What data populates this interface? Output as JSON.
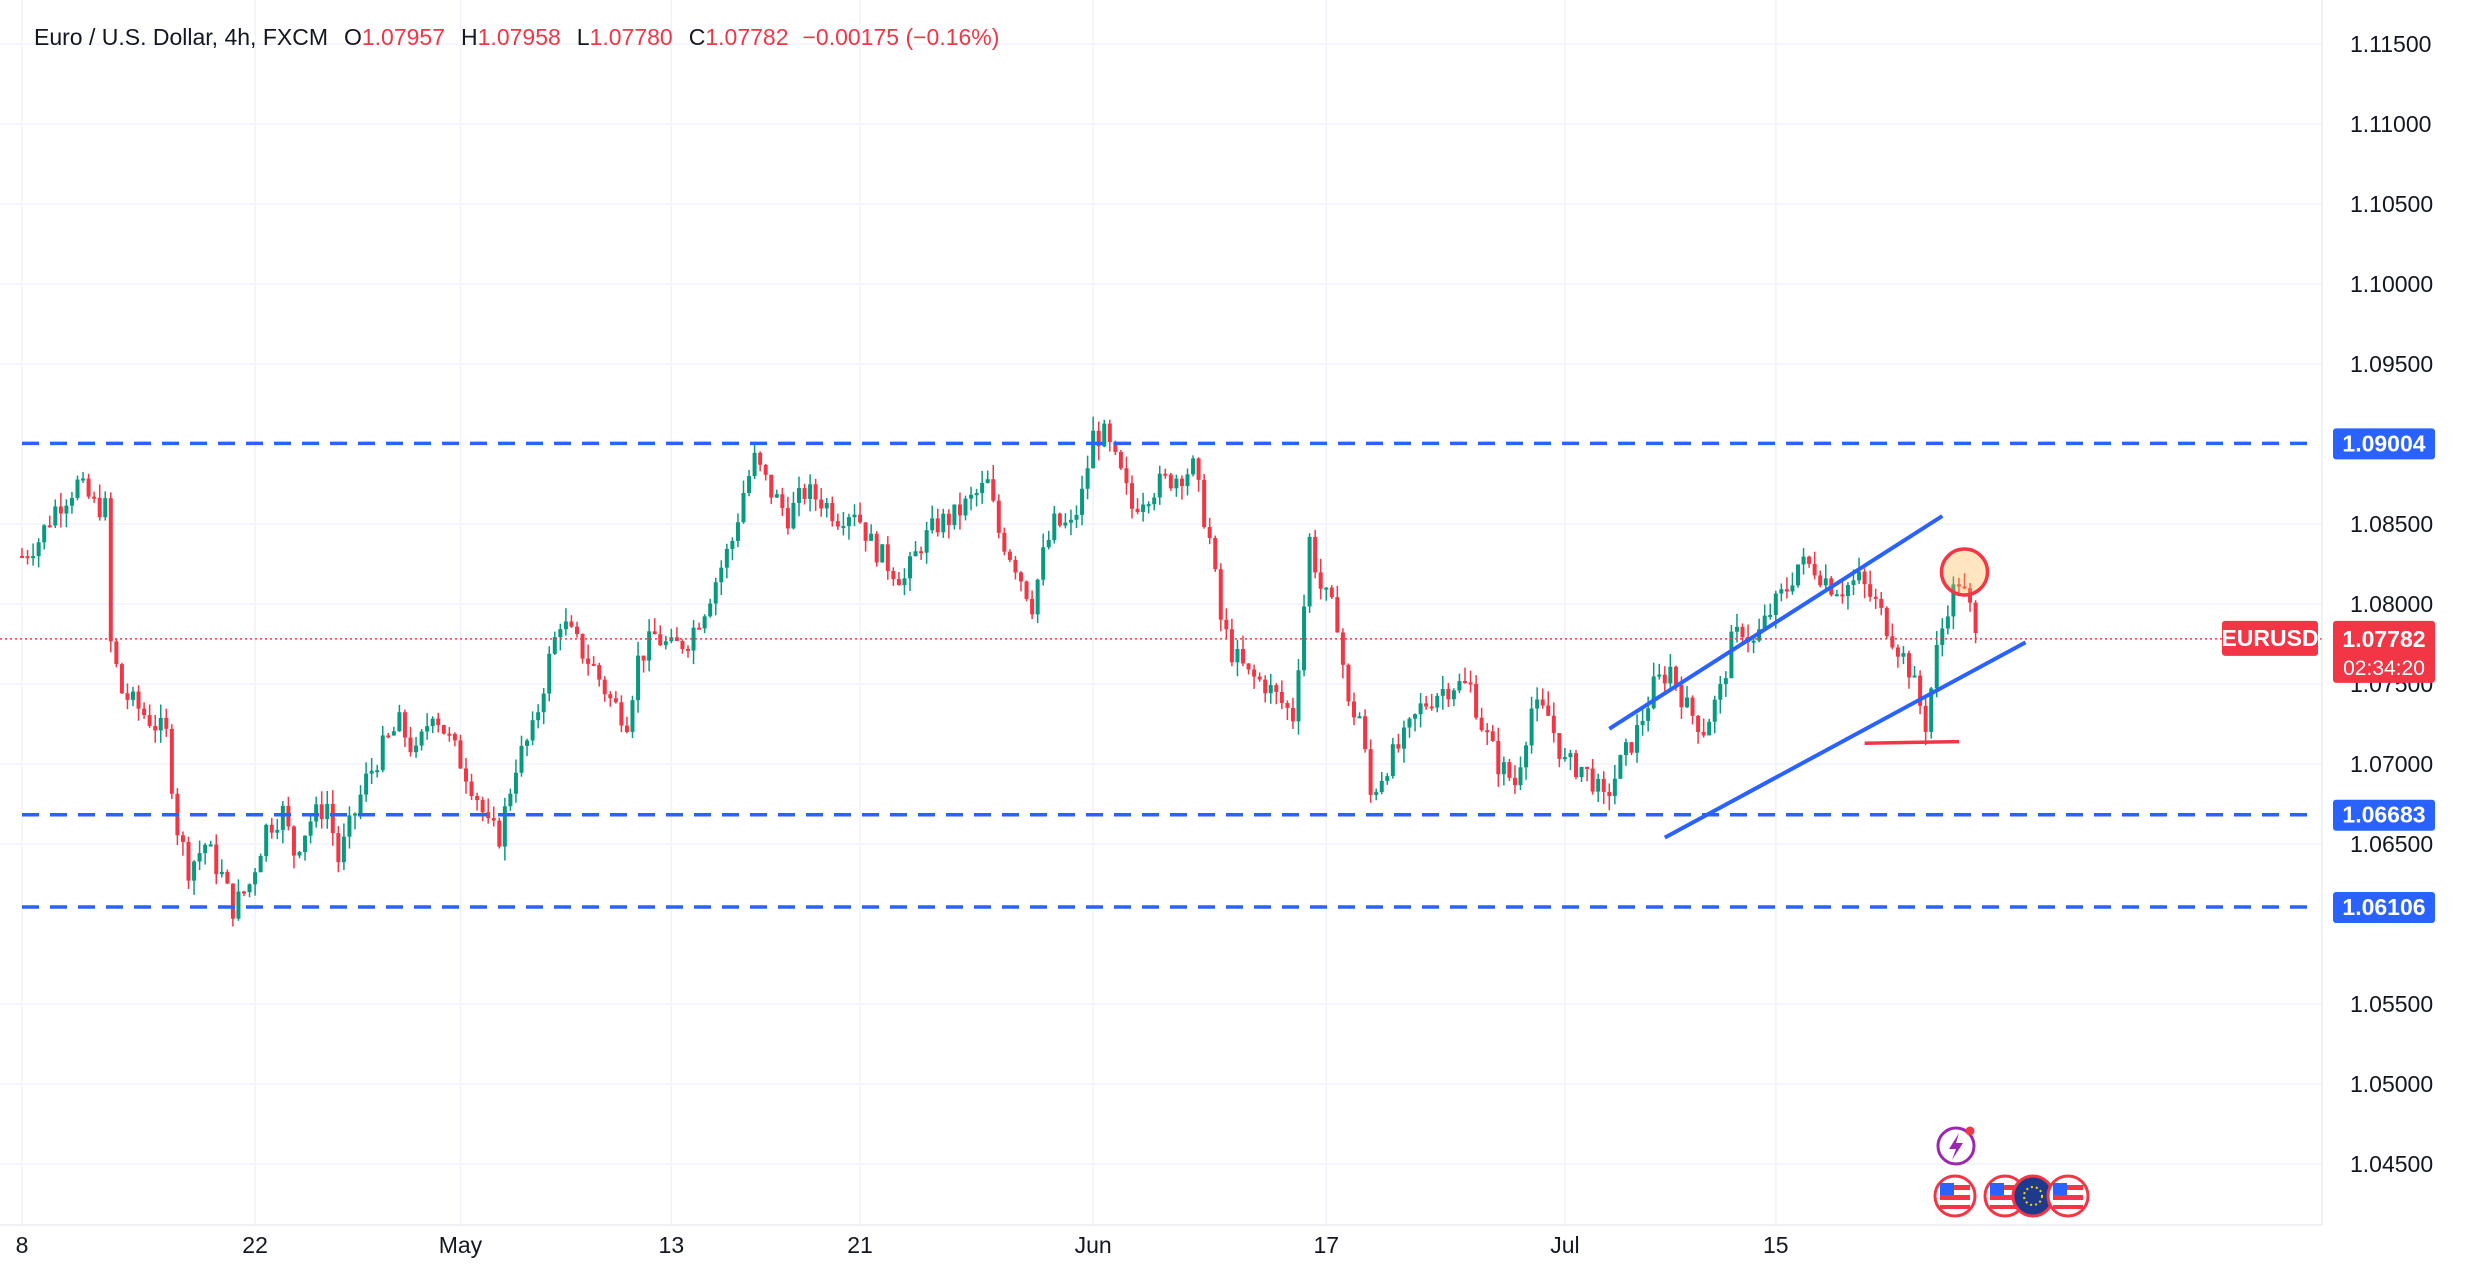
{
  "header": {
    "symbol": "Euro / U.S. Dollar, 4h, FXCM",
    "o_label": "O",
    "o_value": "1.07957",
    "h_label": "H",
    "h_value": "1.07958",
    "l_label": "L",
    "l_value": "1.07780",
    "c_label": "C",
    "c_value": "1.07782",
    "change": "−0.00175 (−0.16%)"
  },
  "chart_data": {
    "type": "candlestick",
    "symbol": "EURUSD",
    "timeframe": "4h",
    "y_ticks": [
      "1.11500",
      "1.11000",
      "1.10500",
      "1.10000",
      "1.09500",
      "1.08500",
      "1.08000",
      "1.07500",
      "1.07000",
      "1.06500",
      "1.05500",
      "1.05000",
      "1.04500"
    ],
    "y_tick_values": [
      1.115,
      1.11,
      1.105,
      1.1,
      1.095,
      1.085,
      1.08,
      1.075,
      1.07,
      1.065,
      1.055,
      1.05,
      1.045
    ],
    "ylim": [
      1.0415,
      1.1185
    ],
    "x_ticks": [
      "8",
      "22",
      "May",
      "13",
      "21",
      "Jun",
      "17",
      "Jul",
      "15"
    ],
    "x_tick_index": [
      0,
      42,
      79,
      117,
      151,
      193,
      235,
      278,
      316
    ],
    "horizontal_levels": [
      {
        "label": "1.09004",
        "value": 1.09004
      },
      {
        "label": "1.06683",
        "value": 1.06683
      },
      {
        "label": "1.06106",
        "value": 1.06106
      }
    ],
    "last_price": {
      "symbol": "EURUSD",
      "value": "1.07782",
      "countdown": "02:34:20",
      "numeric": 1.07782
    },
    "channel": {
      "upper": [
        [
          286,
          1.0722
        ],
        [
          346,
          1.0855
        ]
      ],
      "lower": [
        [
          296,
          1.0654
        ],
        [
          361,
          1.0776
        ]
      ],
      "support_mark": [
        [
          332,
          1.0713
        ],
        [
          349,
          1.0714
        ]
      ]
    },
    "highlight_circle": {
      "index": 350,
      "value": 1.082
    },
    "price_path": [
      [
        0,
        1.083
      ],
      [
        3,
        1.084
      ],
      [
        6,
        1.086
      ],
      [
        10,
        1.0875
      ],
      [
        13,
        1.0862
      ],
      [
        15,
        1.086
      ],
      [
        16,
        1.0775
      ],
      [
        18,
        1.0745
      ],
      [
        20,
        1.0738
      ],
      [
        23,
        1.0728
      ],
      [
        26,
        1.0718
      ],
      [
        28,
        1.066
      ],
      [
        30,
        1.0635
      ],
      [
        33,
        1.065
      ],
      [
        36,
        1.063
      ],
      [
        38,
        1.061
      ],
      [
        41,
        1.0625
      ],
      [
        44,
        1.066
      ],
      [
        47,
        1.067
      ],
      [
        49,
        1.0645
      ],
      [
        52,
        1.0665
      ],
      [
        55,
        1.0675
      ],
      [
        57,
        1.064
      ],
      [
        60,
        1.067
      ],
      [
        62,
        1.069
      ],
      [
        65,
        1.071
      ],
      [
        68,
        1.0725
      ],
      [
        71,
        1.0705
      ],
      [
        74,
        1.0735
      ],
      [
        77,
        1.0715
      ],
      [
        80,
        1.0695
      ],
      [
        82,
        1.068
      ],
      [
        84,
        1.066
      ],
      [
        86,
        1.0655
      ],
      [
        89,
        1.07
      ],
      [
        92,
        1.072
      ],
      [
        95,
        1.0765
      ],
      [
        97,
        1.079
      ],
      [
        100,
        1.0775
      ],
      [
        103,
        1.076
      ],
      [
        106,
        1.074
      ],
      [
        109,
        1.0728
      ],
      [
        111,
        1.0765
      ],
      [
        114,
        1.078
      ],
      [
        117,
        1.0772
      ],
      [
        120,
        1.0778
      ],
      [
        123,
        1.0798
      ],
      [
        125,
        1.0815
      ],
      [
        128,
        1.084
      ],
      [
        130,
        1.087
      ],
      [
        132,
        1.089
      ],
      [
        135,
        1.087
      ],
      [
        138,
        1.0855
      ],
      [
        141,
        1.087
      ],
      [
        144,
        1.0865
      ],
      [
        147,
        1.0855
      ],
      [
        150,
        1.086
      ],
      [
        153,
        1.0838
      ],
      [
        156,
        1.0825
      ],
      [
        159,
        1.0815
      ],
      [
        162,
        1.0838
      ],
      [
        165,
        1.085
      ],
      [
        168,
        1.0855
      ],
      [
        171,
        1.0865
      ],
      [
        174,
        1.0875
      ],
      [
        176,
        1.0845
      ],
      [
        179,
        1.0825
      ],
      [
        182,
        1.08
      ],
      [
        184,
        1.083
      ],
      [
        186,
        1.085
      ],
      [
        189,
        1.0848
      ],
      [
        191,
        1.0868
      ],
      [
        193,
        1.0905
      ],
      [
        195,
        1.0905
      ],
      [
        198,
        1.088
      ],
      [
        200,
        1.086
      ],
      [
        202,
        1.0868
      ],
      [
        205,
        1.0875
      ],
      [
        208,
        1.088
      ],
      [
        211,
        1.0885
      ],
      [
        214,
        1.084
      ],
      [
        216,
        1.079
      ],
      [
        218,
        1.077
      ],
      [
        221,
        1.0755
      ],
      [
        224,
        1.075
      ],
      [
        227,
        1.0738
      ],
      [
        229,
        1.073
      ],
      [
        231,
        1.08
      ],
      [
        232,
        1.084
      ],
      [
        234,
        1.081
      ],
      [
        237,
        1.079
      ],
      [
        239,
        1.0735
      ],
      [
        241,
        1.073
      ],
      [
        243,
        1.068
      ],
      [
        246,
        1.07
      ],
      [
        249,
        1.0715
      ],
      [
        252,
        1.0735
      ],
      [
        255,
        1.0745
      ],
      [
        258,
        1.075
      ],
      [
        261,
        1.0748
      ],
      [
        263,
        1.0725
      ],
      [
        266,
        1.07
      ],
      [
        269,
        1.0688
      ],
      [
        272,
        1.0735
      ],
      [
        275,
        1.073
      ],
      [
        278,
        1.07
      ],
      [
        281,
        1.0698
      ],
      [
        283,
        1.069
      ],
      [
        285,
        1.0676
      ],
      [
        288,
        1.07
      ],
      [
        291,
        1.072
      ],
      [
        294,
        1.0748
      ],
      [
        297,
        1.076
      ],
      [
        300,
        1.0735
      ],
      [
        303,
        1.0722
      ],
      [
        306,
        1.0745
      ],
      [
        308,
        1.0775
      ],
      [
        310,
        1.0785
      ],
      [
        312,
        1.0775
      ],
      [
        315,
        1.0795
      ],
      [
        318,
        1.081
      ],
      [
        320,
        1.0825
      ],
      [
        323,
        1.0823
      ],
      [
        326,
        1.0812
      ],
      [
        328,
        1.081
      ],
      [
        331,
        1.0815
      ],
      [
        334,
        1.08
      ],
      [
        337,
        1.078
      ],
      [
        340,
        1.076
      ],
      [
        343,
        1.0725
      ],
      [
        345,
        1.077
      ],
      [
        347,
        1.08
      ],
      [
        349,
        1.0815
      ],
      [
        351,
        1.0796
      ],
      [
        352,
        1.0778
      ]
    ]
  }
}
